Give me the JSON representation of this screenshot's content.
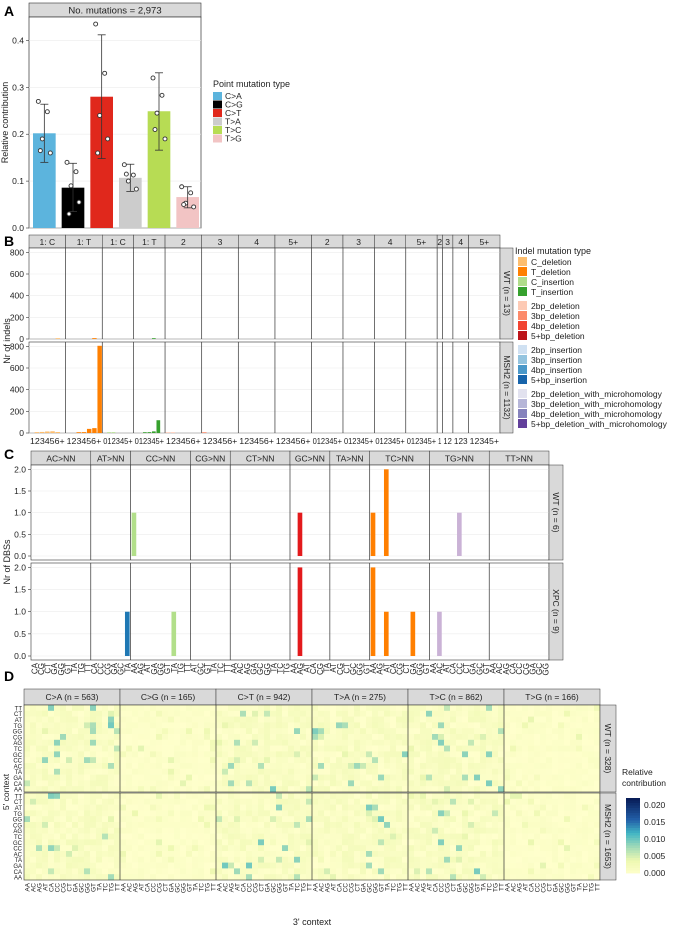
{
  "chart_data": [
    {
      "panel": "A",
      "type": "bar",
      "title": "No. mutations = 2,973",
      "ylabel": "Relative contribution",
      "ylim": [
        0,
        0.45
      ],
      "yticks": [
        0.0,
        0.1,
        0.2,
        0.3,
        0.4
      ],
      "ytick_labels": [
        "0.0",
        "0.1",
        "0.2",
        "0.3",
        "0.4"
      ],
      "legend_title": "Point mutation type",
      "categories": [
        "C>A",
        "C>G",
        "C>T",
        "T>A",
        "T>C",
        "T>G"
      ],
      "colors": [
        "#5cb4dd",
        "#000000",
        "#e0281c",
        "#cccccc",
        "#b7dc54",
        "#f2c4c4"
      ],
      "values": [
        0.202,
        0.086,
        0.28,
        0.107,
        0.249,
        0.066
      ],
      "error_low": [
        0.14,
        0.035,
        0.148,
        0.078,
        0.166,
        0.043
      ],
      "error_high": [
        0.264,
        0.138,
        0.412,
        0.136,
        0.331,
        0.088
      ],
      "points": [
        [
          0.27,
          0.248,
          0.19,
          0.16,
          0.165
        ],
        [
          0.14,
          0.12,
          0.09,
          0.055,
          0.03
        ],
        [
          0.435,
          0.33,
          0.24,
          0.19,
          0.16
        ],
        [
          0.135,
          0.113,
          0.1,
          0.083,
          0.115
        ],
        [
          0.32,
          0.283,
          0.245,
          0.19,
          0.21
        ],
        [
          0.088,
          0.075,
          0.053,
          0.045,
          0.05
        ]
      ]
    },
    {
      "panel": "B",
      "type": "bar",
      "ylabel": "Nr of indels",
      "ylim": [
        0,
        840
      ],
      "yticks": [
        0,
        200,
        400,
        600,
        800
      ],
      "ytick_labels": [
        "0",
        "200",
        "400",
        "600",
        "800"
      ],
      "strips": [
        "1: C",
        "1: T",
        "1: C",
        "1: T",
        "2",
        "3",
        "4",
        "5+",
        "2",
        "3",
        "4",
        "5+",
        "2",
        "3",
        "4",
        "5+"
      ],
      "facets": [
        "WT (n = 13)",
        "MSH2 (n = 1132)"
      ],
      "xlabels": [
        "123456+",
        "123456+",
        "012345+",
        "012345+",
        "123456+",
        "123456+",
        "123456+",
        "123456+",
        "012345+",
        "012345+",
        "012345+",
        "012345+",
        "1",
        "12",
        "123",
        "12345+"
      ],
      "legend_title": "Indel mutation type",
      "legend_items": [
        "C_deletion",
        "T_deletion",
        "C_insertion",
        "T_insertion",
        "2bp_deletion",
        "3bp_deletion",
        "4bp_deletion",
        "5+bp_deletion",
        "2bp_insertion",
        "3bp_insertion",
        "4bp_insertion",
        "5+bp_insertion",
        "2bp_deletion_with_microhomology",
        "3bp_deletion_with_microhomology",
        "4bp_deletion_with_microhomology",
        "5+bp_deletion_with_microhomology"
      ],
      "legend_colors": [
        "#fdbe6f",
        "#ff8001",
        "#b0dd8b",
        "#36a12e",
        "#fdcab5",
        "#fc8a6a",
        "#f14432",
        "#bc141a",
        "#d0e1f2",
        "#94c4df",
        "#4a98c9",
        "#1764ab",
        "#e2e2ef",
        "#b6b6d8",
        "#8683bd",
        "#62409b"
      ],
      "series": [
        {
          "name": "WT (n = 13)",
          "bars": [
            {
              "group": 1,
              "pos": 5,
              "value": 8,
              "color": "#ff8001"
            },
            {
              "group": 3,
              "pos": 4,
              "value": 3,
              "color": "#36a12e"
            },
            {
              "group": 0,
              "pos": 5,
              "value": 2,
              "color": "#fdbe6f"
            }
          ]
        },
        {
          "name": "MSH2 (n = 1132)",
          "bars": [
            {
              "group": 0,
              "pos": 1,
              "value": 8,
              "color": "#fdbe6f"
            },
            {
              "group": 0,
              "pos": 2,
              "value": 10,
              "color": "#fdbe6f"
            },
            {
              "group": 0,
              "pos": 3,
              "value": 14,
              "color": "#fdbe6f"
            },
            {
              "group": 0,
              "pos": 4,
              "value": 16,
              "color": "#fdbe6f"
            },
            {
              "group": 0,
              "pos": 5,
              "value": 9,
              "color": "#fdbe6f"
            },
            {
              "group": 1,
              "pos": 2,
              "value": 3,
              "color": "#ff8001"
            },
            {
              "group": 1,
              "pos": 3,
              "value": 8,
              "color": "#ff8001"
            },
            {
              "group": 1,
              "pos": 4,
              "value": 38,
              "color": "#ff8001"
            },
            {
              "group": 1,
              "pos": 5,
              "value": 45,
              "color": "#ff8001"
            },
            {
              "group": 1,
              "pos": 6,
              "value": 805,
              "color": "#ff8001"
            },
            {
              "group": 2,
              "pos": 1,
              "value": 5,
              "color": "#b0dd8b"
            },
            {
              "group": 2,
              "pos": 2,
              "value": 3,
              "color": "#b0dd8b"
            },
            {
              "group": 3,
              "pos": 2,
              "value": 4,
              "color": "#36a12e"
            },
            {
              "group": 3,
              "pos": 3,
              "value": 8,
              "color": "#36a12e"
            },
            {
              "group": 3,
              "pos": 4,
              "value": 15,
              "color": "#36a12e"
            },
            {
              "group": 3,
              "pos": 5,
              "value": 118,
              "color": "#36a12e"
            },
            {
              "group": 4,
              "pos": 0,
              "value": 4,
              "color": "#fdcab5"
            },
            {
              "group": 4,
              "pos": 1,
              "value": 3,
              "color": "#fdcab5"
            },
            {
              "group": 5,
              "pos": 0,
              "value": 2,
              "color": "#fc8a6a"
            }
          ]
        }
      ]
    },
    {
      "panel": "C",
      "type": "bar",
      "ylabel": "Nr of DBSs",
      "ylim": [
        0,
        2.1
      ],
      "yticks": [
        0.0,
        0.5,
        1.0,
        1.5,
        2.0
      ],
      "ytick_labels": [
        "0.0",
        "0.5",
        "1.0",
        "1.5",
        "2.0"
      ],
      "strips": [
        "AC>NN",
        "AT>NN",
        "CC>NN",
        "CG>NN",
        "CT>NN",
        "GC>NN",
        "TA>NN",
        "TC>NN",
        "TG>NN",
        "TT>NN"
      ],
      "facets": [
        "WT (n = 6)",
        "XPC (n = 9)"
      ],
      "group_sizes": [
        9,
        6,
        9,
        6,
        9,
        6,
        6,
        9,
        9,
        9
      ],
      "xlabels": [
        [
          "CA",
          "CG",
          "CT",
          "GA",
          "GG",
          "GT",
          "TA",
          "TG",
          "TT"
        ],
        [
          "CA",
          "CC",
          "CG",
          "GA",
          "GC",
          "TA"
        ],
        [
          "AA",
          "AG",
          "AT",
          "GA",
          "GG",
          "GT",
          "TA",
          "TG",
          "TT"
        ],
        [
          "AT",
          "GC",
          "GT",
          "TA",
          "TC",
          "TT"
        ],
        [
          "AA",
          "AC",
          "AG",
          "GA",
          "GC",
          "GG",
          "TA",
          "TC",
          "TG"
        ],
        [
          "AA",
          "AG",
          "AT",
          "CA",
          "CG",
          "TA"
        ],
        [
          "AT",
          "CG",
          "CT",
          "GC",
          "GG",
          "GT"
        ],
        [
          "AA",
          "AG",
          "AT",
          "CA",
          "CG",
          "CT",
          "GA",
          "GG",
          "GT"
        ],
        [
          "AA",
          "AC",
          "AT",
          "CA",
          "CC",
          "CT",
          "GA",
          "GC",
          "GT"
        ],
        [
          "AA",
          "AC",
          "AG",
          "CA",
          "CC",
          "CG",
          "GA",
          "GC",
          "GG"
        ]
      ],
      "group_colors": [
        "#a6cee3",
        "#1f78b4",
        "#b2df8a",
        "#33a02c",
        "#fb9a99",
        "#e31a1c",
        "#fdbf6f",
        "#ff7f00",
        "#cab2d6",
        "#6a3d9a"
      ],
      "series": [
        {
          "name": "WT (n = 6)",
          "bars": [
            {
              "group": 2,
              "pos": 0,
              "value": 1
            },
            {
              "group": 5,
              "pos": 1,
              "value": 1
            },
            {
              "group": 7,
              "pos": 0,
              "value": 1
            },
            {
              "group": 7,
              "pos": 2,
              "value": 2
            },
            {
              "group": 8,
              "pos": 4,
              "value": 1
            }
          ]
        },
        {
          "name": "XPC (n = 9)",
          "bars": [
            {
              "group": 1,
              "pos": 5,
              "value": 1
            },
            {
              "group": 2,
              "pos": 6,
              "value": 1
            },
            {
              "group": 5,
              "pos": 1,
              "value": 2
            },
            {
              "group": 7,
              "pos": 0,
              "value": 2
            },
            {
              "group": 7,
              "pos": 2,
              "value": 1
            },
            {
              "group": 7,
              "pos": 6,
              "value": 1
            },
            {
              "group": 8,
              "pos": 1,
              "value": 1
            }
          ]
        }
      ]
    },
    {
      "panel": "D",
      "type": "heatmap",
      "strips": [
        "C>A (n = 563)",
        "C>G (n = 165)",
        "C>T (n = 942)",
        "T>A (n = 275)",
        "T>C (n = 862)",
        "T>G (n = 166)"
      ],
      "facets": [
        "WT (n = 328)",
        "MSH2 (n = 1653)"
      ],
      "ylabel": "5' context",
      "xlabel": "3' context",
      "row_labels": [
        "TT",
        "CT",
        "AT",
        "TG",
        "GG",
        "CG",
        "AG",
        "TC",
        "GC",
        "CC",
        "AC",
        "TA",
        "GA",
        "CA",
        "AA"
      ],
      "col_labels": [
        "AA",
        "AC",
        "AG",
        "AT",
        "CA",
        "CC",
        "CG",
        "CT",
        "GA",
        "GC",
        "GG",
        "GT",
        "TA",
        "TC",
        "TG",
        "TT"
      ],
      "legend_title": "Relative contribution",
      "legend_ticks": [
        "0.020",
        "0.015",
        "0.010",
        "0.005",
        "0.000"
      ],
      "legend_range": [
        0,
        0.022
      ]
    }
  ],
  "labels": {
    "panel_a": "A",
    "panel_b": "B",
    "panel_c": "C",
    "panel_d": "D"
  }
}
